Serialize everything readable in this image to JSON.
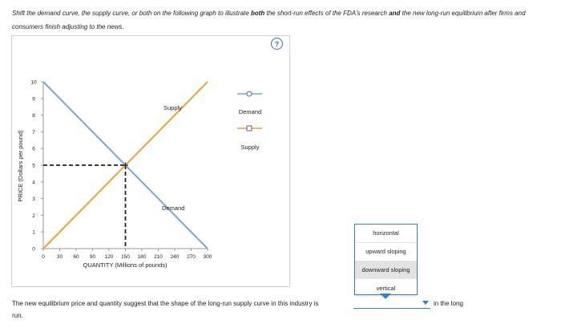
{
  "instructions": {
    "part1": "Shift the demand curve, the supply curve, or both on the following graph to illustrate ",
    "bold1": "both",
    "part2": " the short-run effects of the FDA's research ",
    "bold2": "and",
    "part3": " the new long-run equilibrium after firms and consumers finish adjusting to the news."
  },
  "help_label": "?",
  "graph": {
    "ylabel": "PRICE (Dollars per pound)",
    "xlabel": "QUANTITY (Millions of pounds)",
    "x_ticks": [
      "0",
      "30",
      "60",
      "90",
      "120",
      "150",
      "180",
      "210",
      "240",
      "270",
      "300"
    ],
    "y_ticks": [
      "0",
      "1",
      "2",
      "3",
      "4",
      "5",
      "6",
      "7",
      "8",
      "9",
      "10"
    ],
    "supply_label": "Supply",
    "demand_label": "Demand",
    "colors": {
      "supply": "#e8a33a",
      "demand": "#7ca6cf",
      "dashed": "#222222"
    }
  },
  "chart_data": {
    "type": "line",
    "xlabel": "QUANTITY (Millions of pounds)",
    "ylabel": "PRICE (Dollars per pound)",
    "xlim": [
      0,
      300
    ],
    "ylim": [
      0,
      10
    ],
    "series": [
      {
        "name": "Supply",
        "x": [
          0,
          300
        ],
        "y": [
          0,
          10
        ]
      },
      {
        "name": "Demand",
        "x": [
          0,
          300
        ],
        "y": [
          10,
          0
        ]
      }
    ],
    "equilibrium": {
      "x": 150,
      "y": 5
    }
  },
  "tools": {
    "demand_label": "Demand",
    "supply_label": "Supply"
  },
  "question": {
    "text": "The new equilibrium price and quantity suggest that the shape of the long-run supply curve in this industry is",
    "tail": "in the long",
    "run": "run."
  },
  "dropdown": {
    "options": [
      "horizontal",
      "upward sloping",
      "downward sloping",
      "vertical"
    ],
    "highlighted_index": 2
  }
}
